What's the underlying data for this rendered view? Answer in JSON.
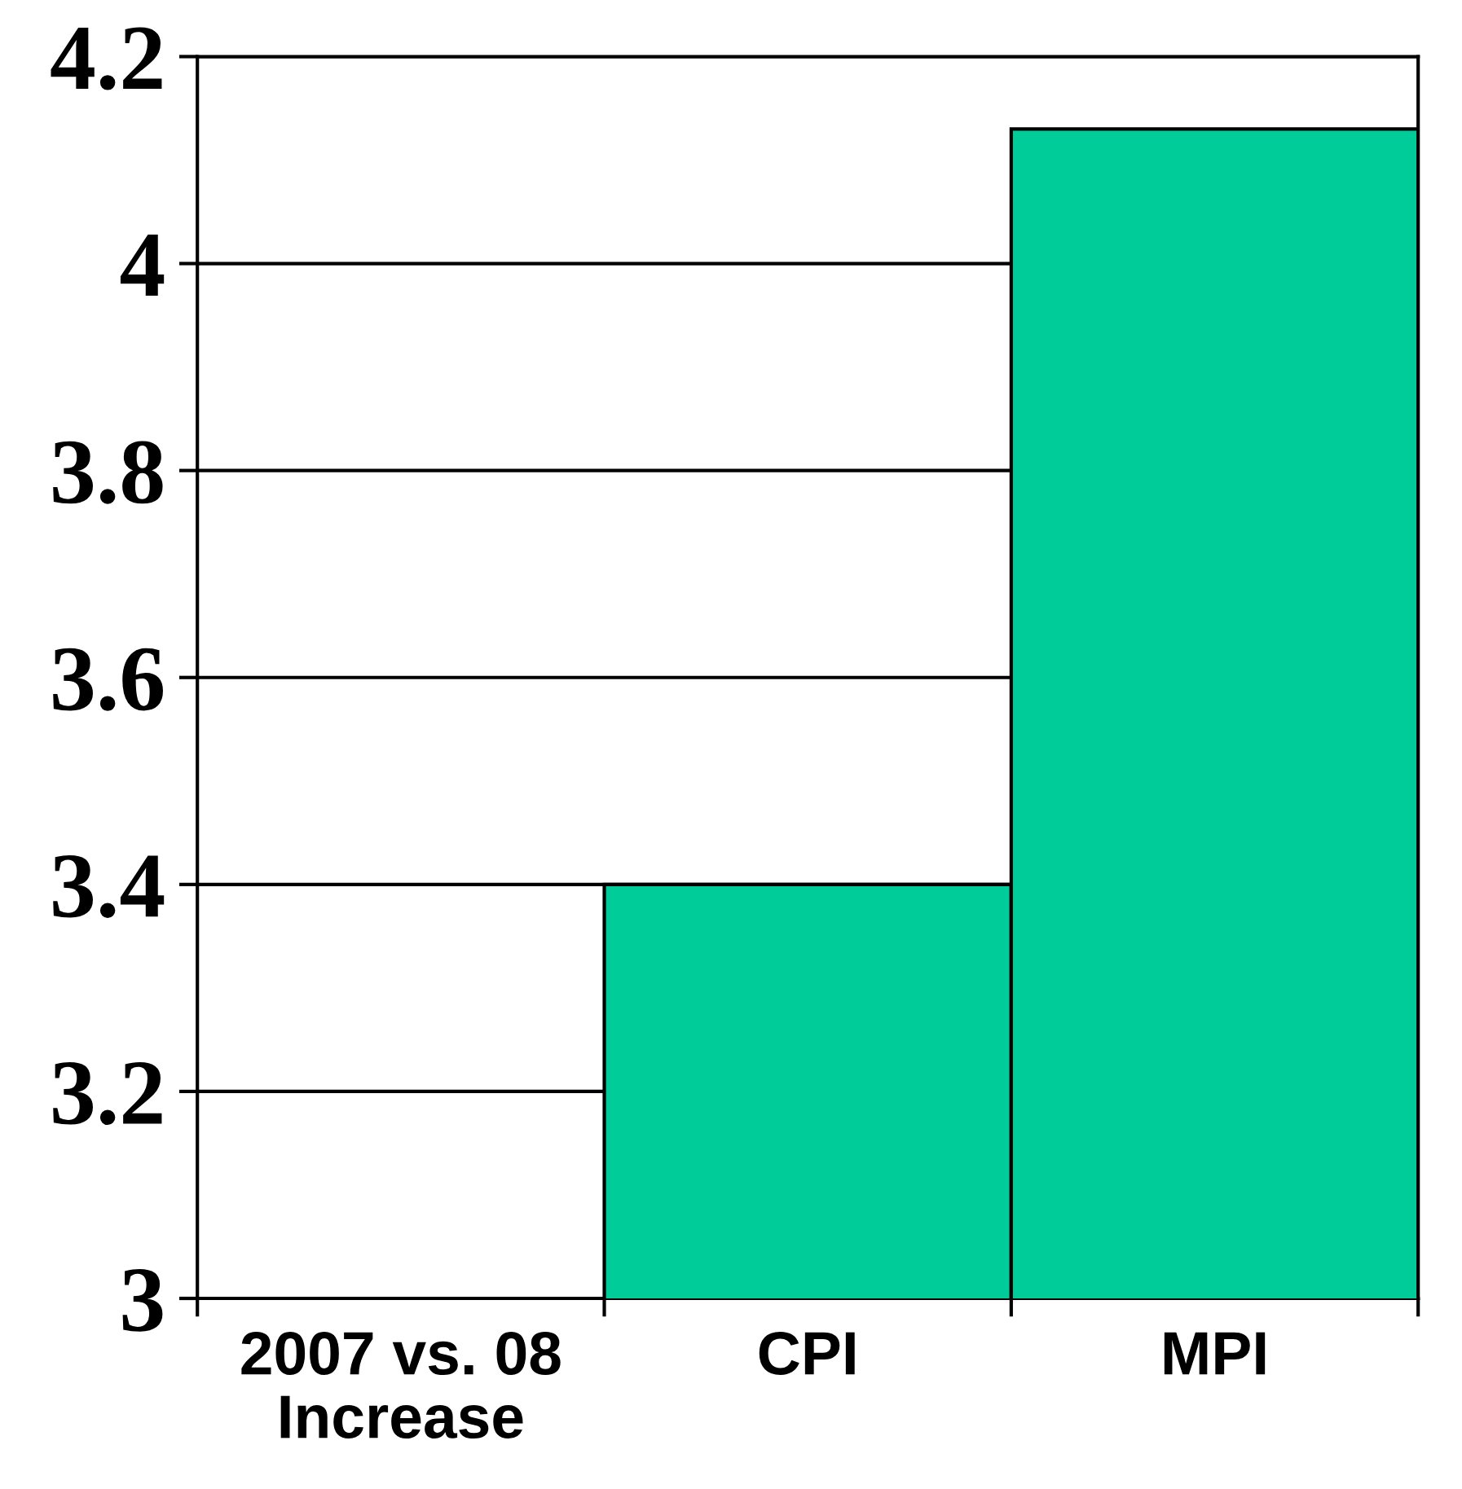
{
  "chart_data": {
    "type": "bar",
    "categories": [
      "2007 vs. 08\nIncrease",
      "CPI",
      "MPI"
    ],
    "values": [
      3,
      3.4,
      4.13
    ],
    "color": "#00cc99",
    "ylim": [
      3,
      4.2
    ],
    "yticks": [
      3,
      3.2,
      3.4,
      3.6,
      3.8,
      4,
      4.2
    ],
    "grid": "y"
  }
}
